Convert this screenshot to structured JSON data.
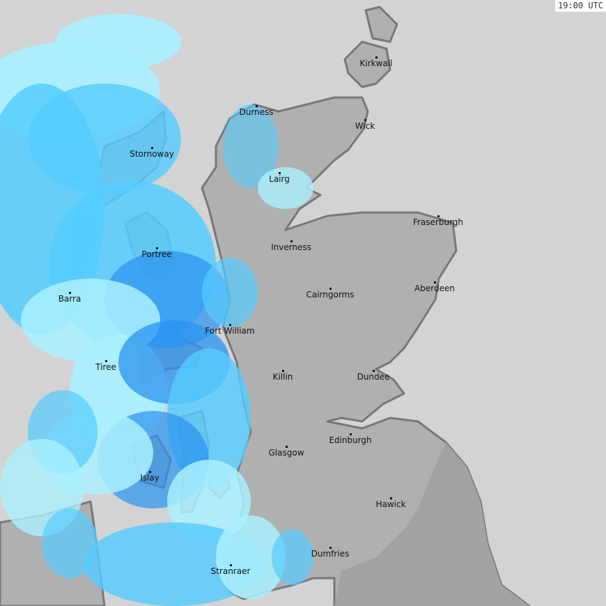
{
  "timestamp": "19:00 UTC",
  "colors": {
    "sea": "#d3d3d3",
    "land": "#b0b0b0",
    "england": "#a2a2a2",
    "coastline": "#777777",
    "rain_light": "#aaf0ff",
    "rain_medium": "#55ccff",
    "rain_heavy": "#2a93f0"
  },
  "cities": [
    "Kirkwall",
    "Durness",
    "Wick",
    "Stornoway",
    "Lairg",
    "Fraserburgh",
    "Inverness",
    "Portree",
    "Barra",
    "Cairngorms",
    "Aberdeen",
    "Fort William",
    "Tiree",
    "Killin",
    "Dundee",
    "Edinburgh",
    "Glasgow",
    "Islay",
    "Hawick",
    "Dumfries",
    "Stranraer"
  ]
}
